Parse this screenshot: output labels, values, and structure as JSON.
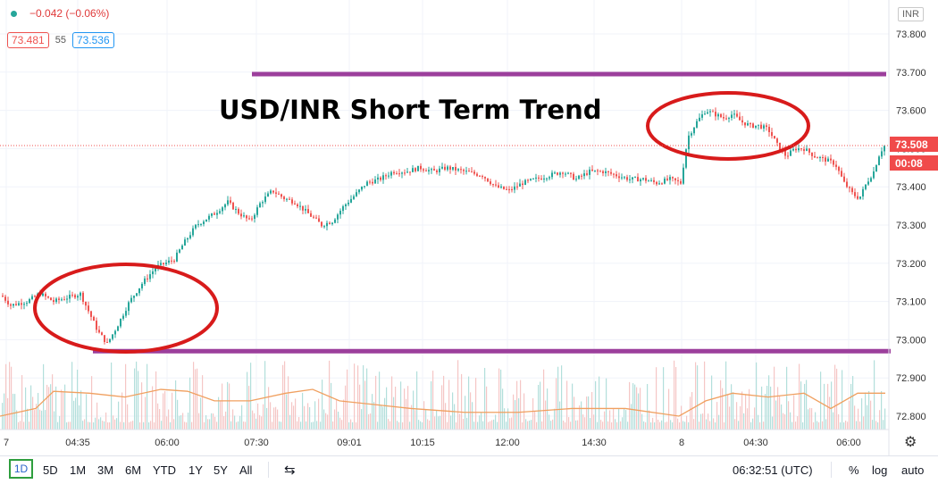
{
  "header": {
    "change": "−0.042 (−0.06%)",
    "bid": "73.481",
    "spread": "55",
    "ask": "73.536",
    "currency_button": "INR",
    "current_price": "73.508",
    "countdown": "00:08"
  },
  "toolbar": {
    "ranges": [
      "1D",
      "5D",
      "1M",
      "3M",
      "6M",
      "YTD",
      "1Y",
      "5Y",
      "All"
    ],
    "active_range": "1D",
    "clock": "06:32:51 (UTC)",
    "percent_label": "%",
    "log_label": "log",
    "auto_label": "auto",
    "compare_icon": "compare-icon",
    "settings_icon": "gear-icon"
  },
  "colors": {
    "up": "#26a69a",
    "down": "#ef5350",
    "support_resistance": "#9c3f9c",
    "annotation_ellipse": "#d81b1b",
    "moving_average": "#f0a060",
    "price_tag_bg": "#f04a4a"
  },
  "chart_data": {
    "type": "candlestick",
    "title": "USD/INR Short Term Trend",
    "x_ticks": [
      "7",
      "04:35",
      "06:00",
      "07:30",
      "09:01",
      "10:15",
      "12:00",
      "14:30",
      "8",
      "04:30",
      "06:00"
    ],
    "y_ticks": [
      72.8,
      72.9,
      73.0,
      73.1,
      73.2,
      73.3,
      73.4,
      73.5,
      73.6,
      73.7,
      73.8
    ],
    "ylim": [
      72.74,
      73.86
    ],
    "close_series": [
      [
        0,
        73.12
      ],
      [
        12,
        73.09
      ],
      [
        30,
        73.1
      ],
      [
        45,
        73.12
      ],
      [
        60,
        73.1
      ],
      [
        75,
        73.11
      ],
      [
        90,
        73.12
      ],
      [
        100,
        73.07
      ],
      [
        110,
        73.02
      ],
      [
        120,
        72.99
      ],
      [
        130,
        73.03
      ],
      [
        145,
        73.1
      ],
      [
        160,
        73.15
      ],
      [
        175,
        73.19
      ],
      [
        185,
        73.2
      ],
      [
        195,
        73.21
      ],
      [
        205,
        73.25
      ],
      [
        220,
        73.3
      ],
      [
        240,
        73.33
      ],
      [
        255,
        73.36
      ],
      [
        268,
        73.33
      ],
      [
        280,
        73.31
      ],
      [
        292,
        73.36
      ],
      [
        305,
        73.39
      ],
      [
        318,
        73.37
      ],
      [
        330,
        73.36
      ],
      [
        345,
        73.33
      ],
      [
        360,
        73.3
      ],
      [
        372,
        73.31
      ],
      [
        385,
        73.35
      ],
      [
        398,
        73.38
      ],
      [
        410,
        73.41
      ],
      [
        425,
        73.42
      ],
      [
        440,
        73.44
      ],
      [
        455,
        73.44
      ],
      [
        470,
        73.45
      ],
      [
        485,
        73.44
      ],
      [
        500,
        73.45
      ],
      [
        520,
        73.44
      ],
      [
        540,
        73.43
      ],
      [
        555,
        73.4
      ],
      [
        570,
        73.39
      ],
      [
        585,
        73.41
      ],
      [
        600,
        73.42
      ],
      [
        615,
        73.43
      ],
      [
        630,
        73.44
      ],
      [
        645,
        73.42
      ],
      [
        660,
        73.44
      ],
      [
        675,
        73.44
      ],
      [
        690,
        73.43
      ],
      [
        705,
        73.42
      ],
      [
        720,
        73.42
      ],
      [
        735,
        73.41
      ],
      [
        750,
        73.42
      ],
      [
        762,
        73.41
      ],
      [
        770,
        73.53
      ],
      [
        780,
        73.57
      ],
      [
        790,
        73.6
      ],
      [
        800,
        73.59
      ],
      [
        810,
        73.58
      ],
      [
        820,
        73.59
      ],
      [
        830,
        73.57
      ],
      [
        840,
        73.56
      ],
      [
        850,
        73.56
      ],
      [
        860,
        73.55
      ],
      [
        870,
        73.51
      ],
      [
        880,
        73.48
      ],
      [
        890,
        73.5
      ],
      [
        900,
        73.5
      ],
      [
        912,
        73.48
      ],
      [
        925,
        73.47
      ],
      [
        935,
        73.46
      ],
      [
        945,
        73.41
      ],
      [
        955,
        73.38
      ],
      [
        962,
        73.37
      ],
      [
        970,
        73.41
      ],
      [
        978,
        73.44
      ],
      [
        985,
        73.49
      ],
      [
        991,
        73.51
      ]
    ],
    "resistance_level": 73.695,
    "support_level": 72.97,
    "volume_ma": [
      [
        0,
        72.8
      ],
      [
        40,
        72.82
      ],
      [
        60,
        72.865
      ],
      [
        100,
        72.86
      ],
      [
        140,
        72.85
      ],
      [
        180,
        72.87
      ],
      [
        210,
        72.865
      ],
      [
        240,
        72.84
      ],
      [
        280,
        72.84
      ],
      [
        320,
        72.86
      ],
      [
        350,
        72.87
      ],
      [
        380,
        72.84
      ],
      [
        420,
        72.83
      ],
      [
        460,
        72.82
      ],
      [
        520,
        72.81
      ],
      [
        580,
        72.81
      ],
      [
        640,
        72.82
      ],
      [
        700,
        72.82
      ],
      [
        760,
        72.8
      ],
      [
        790,
        72.84
      ],
      [
        820,
        72.86
      ],
      [
        860,
        72.85
      ],
      [
        900,
        72.86
      ],
      [
        930,
        72.82
      ],
      [
        960,
        72.86
      ],
      [
        991,
        72.86
      ]
    ]
  }
}
